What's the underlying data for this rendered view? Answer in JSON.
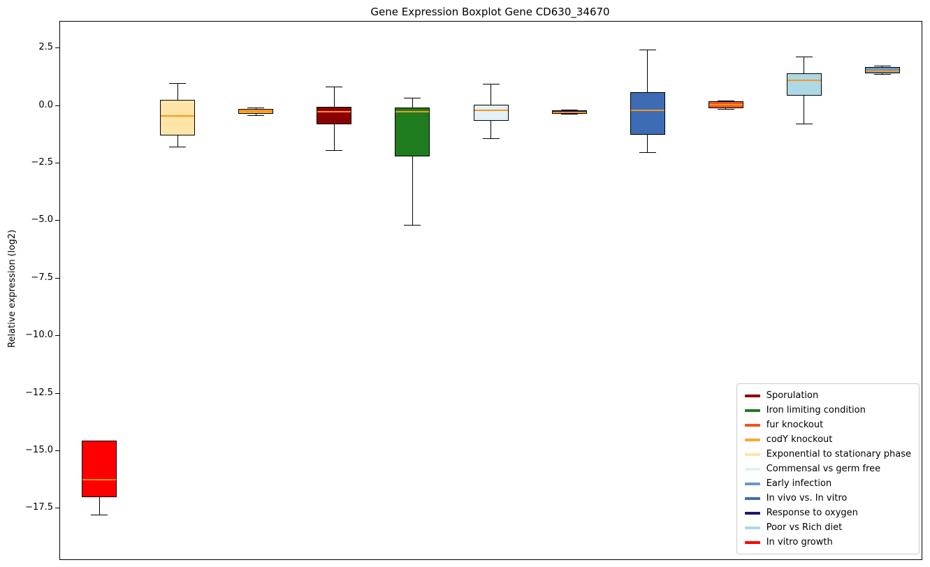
{
  "chart_data": {
    "type": "boxplot",
    "title": "Gene Expression Boxplot Gene CD630_34670",
    "ylabel": "Relative expression (log2)",
    "xlabel": "",
    "ylim": [
      -19.7,
      3.66
    ],
    "yticks": [
      2.5,
      0.0,
      -2.5,
      -5.0,
      -7.5,
      -10.0,
      -12.5,
      -15.0,
      -17.5
    ],
    "grid": false,
    "legend_position": "lower right",
    "median_color": "#ff9415",
    "box_edge_color": "#000000",
    "series": [
      {
        "name": "In vitro growth",
        "color": "#ff0000",
        "whisker_low": -17.8,
        "q1": -17.0,
        "median": -16.25,
        "q3": -14.55,
        "whisker_high": -14.55
      },
      {
        "name": "Exponential to stationary phase",
        "color": "#ffe4a8",
        "whisker_low": -1.8,
        "q1": -1.3,
        "median": -0.45,
        "q3": 0.25,
        "whisker_high": 1.0
      },
      {
        "name": "codY knockout",
        "color": "#ffa733",
        "whisker_low": -0.45,
        "q1": -0.35,
        "median": -0.22,
        "q3": -0.14,
        "whisker_high": -0.08
      },
      {
        "name": "Sporulation",
        "color": "#8b0000",
        "whisker_low": -1.95,
        "q1": -0.8,
        "median": -0.25,
        "q3": -0.05,
        "whisker_high": 0.85
      },
      {
        "name": "Iron limiting condition",
        "color": "#1e7b1e",
        "whisker_low": -5.2,
        "q1": -2.2,
        "median": -0.25,
        "q3": -0.08,
        "whisker_high": 0.35
      },
      {
        "name": "Commensal vs germ free",
        "color": "#e2f1f8",
        "whisker_low": -1.45,
        "q1": -0.65,
        "median": -0.2,
        "q3": 0.05,
        "whisker_high": 0.95
      },
      {
        "name": "Response to oxygen",
        "color": "#1a1a70",
        "whisker_low": -0.38,
        "q1": -0.33,
        "median": -0.27,
        "q3": -0.2,
        "whisker_high": -0.16
      },
      {
        "name": "In vivo vs. In vitro",
        "color": "#3d6cb4",
        "whisker_low": -2.05,
        "q1": -1.25,
        "median": -0.18,
        "q3": 0.6,
        "whisker_high": 2.45
      },
      {
        "name": "fur knockout",
        "color": "#f05423",
        "whisker_low": -0.15,
        "q1": -0.1,
        "median": 0.04,
        "q3": 0.2,
        "whisker_high": 0.22
      },
      {
        "name": "Poor vs Rich diet",
        "color": "#add8e6",
        "whisker_low": -0.8,
        "q1": 0.45,
        "median": 1.1,
        "q3": 1.4,
        "whisker_high": 2.15
      },
      {
        "name": "Early infection",
        "color": "#6699cc",
        "whisker_low": 1.35,
        "q1": 1.4,
        "median": 1.5,
        "q3": 1.7,
        "whisker_high": 1.75
      }
    ],
    "legend": [
      {
        "label": "Sporulation",
        "color": "#8b0000"
      },
      {
        "label": "Iron limiting condition",
        "color": "#1e7b1e"
      },
      {
        "label": "fur knockout",
        "color": "#f05423"
      },
      {
        "label": "codY knockout",
        "color": "#ffa733"
      },
      {
        "label": "Exponential to stationary phase",
        "color": "#ffe4a8"
      },
      {
        "label": "Commensal vs germ free",
        "color": "#e2f1f8"
      },
      {
        "label": "Early infection",
        "color": "#6699cc"
      },
      {
        "label": "In vivo vs. In vitro",
        "color": "#3d6cb4"
      },
      {
        "label": "Response to oxygen",
        "color": "#1a1a70"
      },
      {
        "label": "Poor vs Rich diet",
        "color": "#add8e6"
      },
      {
        "label": "In vitro growth",
        "color": "#ff0000"
      }
    ]
  }
}
